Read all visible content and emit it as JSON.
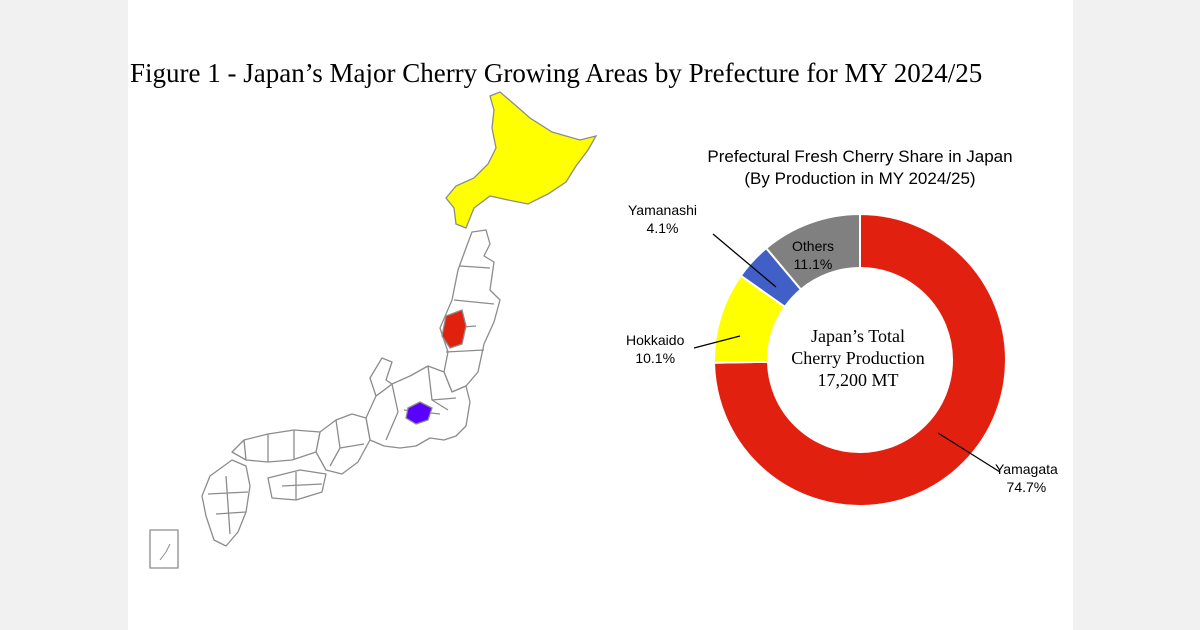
{
  "figure_title": "Figure 1 - Japan’s Major Cherry Growing Areas by Prefecture for MY 2024/25",
  "map": {
    "colors": {
      "hokkaido": "#ffff00",
      "yamagata": "#e0210e",
      "yamanashi": "#5a00ff",
      "outline": "#8c8c8c"
    }
  },
  "chart_data": {
    "type": "pie",
    "donut": true,
    "title": [
      "Prefectural Fresh Cherry Share in Japan",
      "(By Production in MY 2024/25)"
    ],
    "center_text": [
      "Japan’s Total",
      "Cherry Production",
      "17,200 MT"
    ],
    "slices": [
      {
        "name": "Yamagata",
        "value": 74.7,
        "label": "74.7%",
        "color": "#e2200f"
      },
      {
        "name": "Hokkaido",
        "value": 10.1,
        "label": "10.1%",
        "color": "#ffff00"
      },
      {
        "name": "Yamanashi",
        "value": 4.1,
        "label": "4.1%",
        "color": "#4060c8"
      },
      {
        "name": "Others",
        "value": 11.1,
        "label": "11.1%",
        "color": "#808080"
      }
    ],
    "start_angle_deg": 0,
    "direction": "clockwise"
  }
}
